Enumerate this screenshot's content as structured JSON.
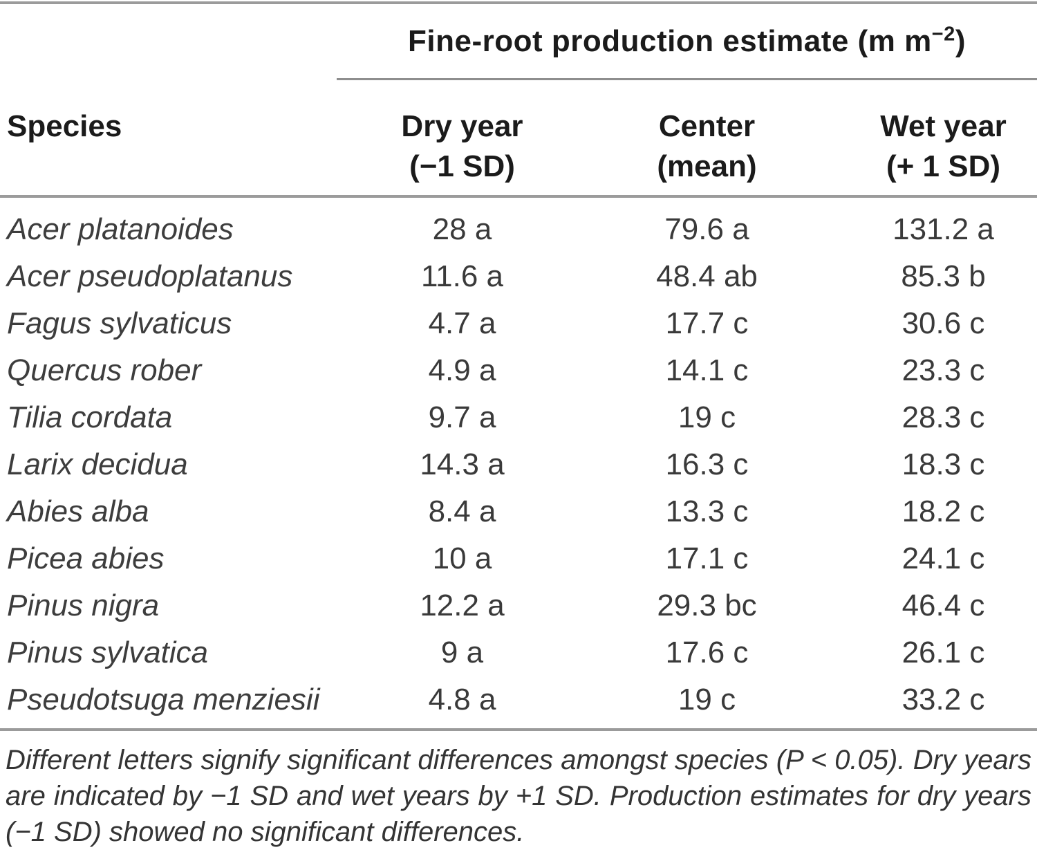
{
  "table": {
    "spanner": {
      "title_main": "Fine-root production estimate (m m",
      "title_sup": "−2",
      "title_close": ")"
    },
    "columns": {
      "species": {
        "line1": "Species",
        "line2": ""
      },
      "dry": {
        "line1": "Dry year",
        "line2": "(−1 SD)"
      },
      "center": {
        "line1": "Center",
        "line2": "(mean)"
      },
      "wet": {
        "line1": "Wet year",
        "line2": "(+ 1 SD)"
      }
    },
    "rows": [
      {
        "species": "Acer platanoides",
        "dry": "28 a",
        "center": "79.6 a",
        "wet": "131.2 a"
      },
      {
        "species": "Acer pseudoplatanus",
        "dry": "11.6 a",
        "center": "48.4 ab",
        "wet": "85.3 b"
      },
      {
        "species": "Fagus sylvaticus",
        "dry": "4.7 a",
        "center": "17.7 c",
        "wet": "30.6 c"
      },
      {
        "species": "Quercus rober",
        "dry": "4.9 a",
        "center": "14.1 c",
        "wet": "23.3 c"
      },
      {
        "species": "Tilia cordata",
        "dry": "9.7 a",
        "center": "19 c",
        "wet": "28.3 c"
      },
      {
        "species": "Larix decidua",
        "dry": "14.3 a",
        "center": "16.3 c",
        "wet": "18.3 c"
      },
      {
        "species": "Abies alba",
        "dry": "8.4 a",
        "center": "13.3 c",
        "wet": "18.2 c"
      },
      {
        "species": "Picea abies",
        "dry": "10 a",
        "center": "17.1 c",
        "wet": "24.1 c"
      },
      {
        "species": "Pinus nigra",
        "dry": "12.2 a",
        "center": "29.3 bc",
        "wet": "46.4 c"
      },
      {
        "species": "Pinus sylvatica",
        "dry": "9 a",
        "center": "17.6 c",
        "wet": "26.1 c"
      },
      {
        "species": "Pseudotsuga menziesii",
        "dry": "4.8 a",
        "center": "19 c",
        "wet": "33.2 c"
      }
    ],
    "footnote_lines": [
      "Different letters signify significant differences amongst species (P < 0.05). Dry years",
      "are indicated by −1 SD and wet years by +1 SD. Production estimates for dry years",
      "(−1 SD) showed no significant differences."
    ],
    "colors": {
      "rule_gray": "#9b9b9b",
      "spanner_rule_gray": "#8e8e8e",
      "header_text": "#1b1b1b",
      "body_text": "#3a3a3a"
    }
  }
}
